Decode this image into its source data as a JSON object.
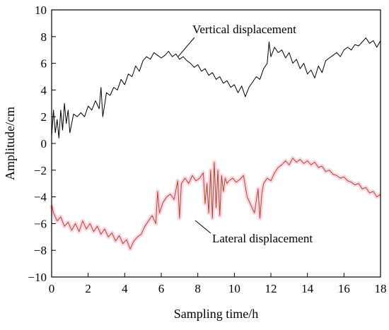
{
  "chart_data": {
    "type": "line",
    "title": "",
    "xlabel": "Sampling time/h",
    "ylabel": "Amplitude/cm",
    "xlim": [
      0,
      18
    ],
    "ylim": [
      -10,
      10
    ],
    "xticks": [
      0,
      2,
      4,
      6,
      8,
      10,
      12,
      14,
      16,
      18
    ],
    "yticks": [
      -10,
      -8,
      -6,
      -4,
      -2,
      0,
      2,
      4,
      6,
      8,
      10
    ],
    "grid": false,
    "legend": "none",
    "series": [
      {
        "name": "Vertical displacement",
        "color": "#000000",
        "x": [
          0.0,
          0.1,
          0.2,
          0.3,
          0.4,
          0.5,
          0.6,
          0.7,
          0.8,
          0.9,
          1.0,
          1.2,
          1.4,
          1.6,
          1.8,
          2.0,
          2.2,
          2.4,
          2.6,
          2.7,
          2.8,
          3.0,
          3.2,
          3.4,
          3.6,
          3.8,
          4.0,
          4.2,
          4.4,
          4.6,
          4.8,
          5.0,
          5.2,
          5.4,
          5.6,
          5.8,
          6.0,
          6.2,
          6.4,
          6.6,
          6.8,
          7.0,
          7.2,
          7.4,
          7.6,
          7.8,
          8.0,
          8.2,
          8.4,
          8.6,
          8.8,
          9.0,
          9.2,
          9.4,
          9.6,
          9.8,
          10.0,
          10.2,
          10.4,
          10.6,
          10.8,
          11.0,
          11.2,
          11.4,
          11.6,
          11.8,
          11.9,
          12.0,
          12.2,
          12.4,
          12.6,
          12.8,
          13.0,
          13.2,
          13.4,
          13.6,
          13.8,
          14.0,
          14.2,
          14.4,
          14.6,
          14.8,
          15.0,
          15.2,
          15.4,
          15.6,
          15.8,
          16.0,
          16.2,
          16.4,
          16.6,
          16.8,
          17.0,
          17.2,
          17.4,
          17.6,
          17.8,
          18.0
        ],
        "y": [
          0.5,
          2.5,
          0.8,
          1.8,
          0.4,
          2.5,
          1.0,
          3.0,
          1.5,
          2.5,
          0.8,
          2.2,
          2.0,
          2.3,
          2.0,
          2.8,
          2.5,
          3.2,
          2.6,
          4.2,
          2.0,
          3.8,
          3.6,
          4.2,
          4.0,
          4.8,
          4.4,
          5.2,
          5.0,
          5.8,
          5.4,
          6.2,
          6.5,
          6.3,
          6.8,
          6.6,
          6.4,
          6.6,
          6.9,
          6.5,
          6.7,
          6.3,
          6.5,
          6.2,
          6.0,
          5.7,
          5.9,
          5.4,
          5.6,
          5.1,
          5.3,
          4.8,
          5.0,
          4.5,
          4.7,
          4.2,
          4.4,
          3.8,
          4.3,
          3.5,
          4.2,
          4.6,
          5.0,
          4.8,
          5.6,
          6.0,
          7.6,
          6.5,
          7.2,
          6.8,
          7.0,
          6.4,
          6.8,
          6.0,
          6.3,
          5.6,
          6.0,
          5.2,
          5.5,
          4.9,
          5.8,
          5.3,
          6.2,
          6.4,
          6.6,
          6.8,
          6.5,
          7.0,
          7.2,
          7.0,
          7.4,
          7.3,
          7.6,
          7.9,
          7.5,
          7.7,
          7.2,
          7.7
        ]
      },
      {
        "name": "Lateral displacement",
        "color": "#a0522d",
        "x": [
          0.0,
          0.1,
          0.3,
          0.5,
          0.7,
          0.9,
          1.1,
          1.3,
          1.5,
          1.7,
          1.9,
          2.1,
          2.3,
          2.5,
          2.7,
          2.9,
          3.1,
          3.3,
          3.5,
          3.7,
          3.9,
          4.1,
          4.3,
          4.5,
          4.7,
          4.9,
          5.1,
          5.3,
          5.5,
          5.7,
          5.8,
          5.9,
          6.1,
          6.3,
          6.5,
          6.7,
          6.9,
          7.0,
          7.1,
          7.3,
          7.5,
          7.7,
          7.9,
          8.1,
          8.3,
          8.4,
          8.5,
          8.6,
          8.7,
          8.8,
          8.9,
          9.0,
          9.1,
          9.2,
          9.3,
          9.4,
          9.5,
          9.6,
          9.7,
          9.9,
          10.1,
          10.3,
          10.5,
          10.7,
          10.9,
          11.1,
          11.3,
          11.4,
          11.5,
          11.6,
          11.8,
          12.0,
          12.2,
          12.4,
          12.6,
          12.8,
          13.0,
          13.2,
          13.4,
          13.6,
          13.8,
          14.0,
          14.2,
          14.4,
          14.6,
          14.8,
          15.0,
          15.2,
          15.4,
          15.6,
          15.8,
          16.0,
          16.2,
          16.4,
          16.6,
          16.8,
          17.0,
          17.2,
          17.4,
          17.6,
          17.8,
          18.0
        ],
        "y": [
          -4.6,
          -5.2,
          -5.8,
          -5.5,
          -6.2,
          -5.9,
          -6.5,
          -6.0,
          -6.6,
          -5.8,
          -6.4,
          -6.0,
          -6.6,
          -6.2,
          -6.8,
          -6.4,
          -7.0,
          -6.7,
          -7.3,
          -6.9,
          -7.5,
          -7.2,
          -7.9,
          -7.3,
          -7.0,
          -6.8,
          -6.2,
          -5.8,
          -5.4,
          -6.0,
          -3.6,
          -5.2,
          -4.4,
          -4.0,
          -3.8,
          -4.2,
          -2.8,
          -5.6,
          -3.0,
          -2.6,
          -3.0,
          -2.4,
          -2.8,
          -2.6,
          -2.2,
          -4.5,
          -3.0,
          -5.2,
          -2.0,
          -5.6,
          -1.4,
          -4.8,
          -2.0,
          -5.4,
          -2.4,
          -3.6,
          -2.6,
          -3.0,
          -2.8,
          -2.6,
          -2.9,
          -2.7,
          -2.4,
          -4.0,
          -4.6,
          -5.2,
          -3.4,
          -5.6,
          -3.8,
          -3.0,
          -2.6,
          -2.8,
          -2.2,
          -1.8,
          -1.6,
          -1.3,
          -1.6,
          -1.1,
          -1.4,
          -1.2,
          -1.5,
          -1.3,
          -1.6,
          -1.4,
          -1.8,
          -1.7,
          -2.1,
          -2.0,
          -2.3,
          -2.4,
          -2.6,
          -2.5,
          -2.8,
          -2.9,
          -3.1,
          -3.0,
          -3.4,
          -3.3,
          -3.7,
          -3.6,
          -4.0,
          -3.8
        ]
      }
    ],
    "annotations": [
      {
        "text": "Vertical displacement",
        "series": 0
      },
      {
        "text": "Lateral displacement",
        "series": 1
      }
    ]
  }
}
